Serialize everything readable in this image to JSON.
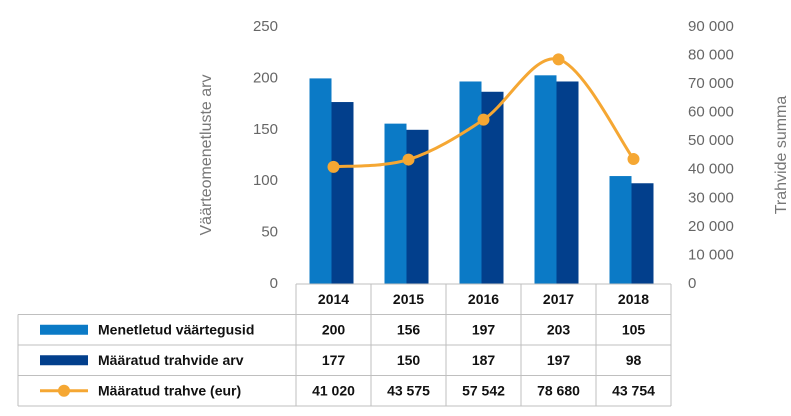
{
  "chart_data": {
    "type": "bar",
    "categories": [
      "2014",
      "2015",
      "2016",
      "2017",
      "2018"
    ],
    "series": [
      {
        "name": "Menetletud väärtegusid",
        "color": "#0b7ac6",
        "values": [
          200,
          156,
          197,
          203,
          105
        ]
      },
      {
        "name": "Määratud trahvide arv",
        "color": "#023f8c",
        "values": [
          177,
          150,
          187,
          197,
          98
        ]
      },
      {
        "name": "Määratud trahve (eur)",
        "color": "#f5a733",
        "type": "line",
        "axis": "y2",
        "values": [
          41020,
          43575,
          57542,
          78680,
          43754
        ],
        "value_labels": [
          "41 020",
          "43 575",
          "57 542",
          "78 680",
          "43 754"
        ]
      }
    ],
    "ylabel": "Väärteomenetluste arv",
    "y2label": "Trahvide summa",
    "ylim": [
      0,
      250
    ],
    "yticks": [
      0,
      50,
      100,
      150,
      200,
      250
    ],
    "y2lim": [
      0,
      90000
    ],
    "y2ticks": [
      0,
      {
        "value": 10000,
        "label": "10 000"
      },
      {
        "value": 20000,
        "label": "20 000"
      },
      {
        "value": 30000,
        "label": "30 000"
      },
      {
        "value": 40000,
        "label": "40 000"
      },
      {
        "value": 50000,
        "label": "50 000"
      },
      {
        "value": 60000,
        "label": "60 000"
      },
      {
        "value": 70000,
        "label": "70 000"
      },
      {
        "value": 80000,
        "label": "80 000"
      },
      {
        "value": 90000,
        "label": "90 000"
      }
    ],
    "grid": false
  }
}
